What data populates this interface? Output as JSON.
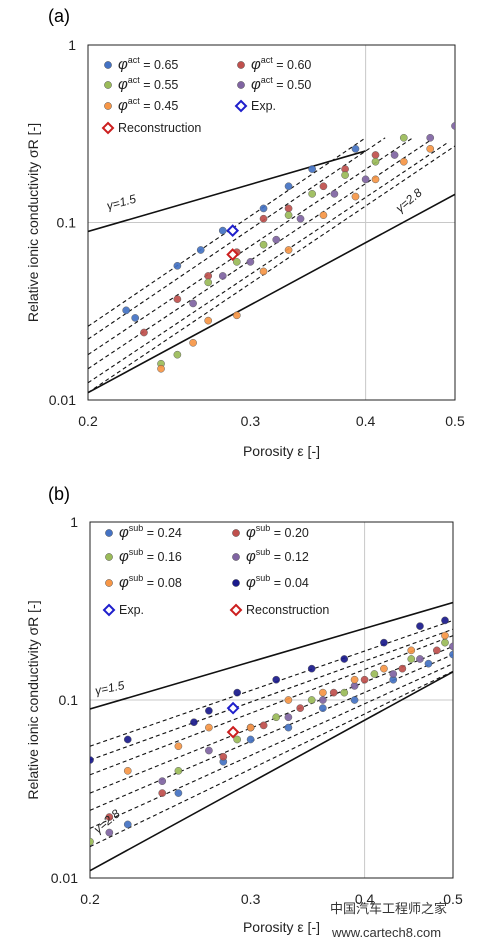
{
  "watermark": {
    "line1": "中国汽车工程师之家",
    "line2": "www.cartech8.com"
  },
  "chart_data": [
    {
      "panel": "(a)",
      "type": "scatter",
      "scale": "log-log",
      "xlabel": "Porosity ε [-]",
      "ylabel": "Relative ionic conductivity σR [-]",
      "xlim": [
        0.2,
        0.5
      ],
      "ylim": [
        0.01,
        1
      ],
      "xticks": [
        "0.2",
        "0.3",
        "0.4",
        "0.5"
      ],
      "yticks": [
        "0.01",
        "0.1",
        "1"
      ],
      "grid": {
        "x": 0.4,
        "y": 0.1
      },
      "bounds": [
        {
          "label": "γ=1.5",
          "exponent": 1.5,
          "points": [
            [
              0.2,
              0.089
            ],
            [
              0.4,
              0.253
            ]
          ]
        },
        {
          "label": "γ=2.8",
          "exponent": 2.8,
          "points": [
            [
              0.2,
              0.011
            ],
            [
              0.5,
              0.144
            ]
          ]
        }
      ],
      "fit_lines": [
        {
          "from": [
            0.2,
            0.026
          ],
          "to": [
            0.4,
            0.3
          ]
        },
        {
          "from": [
            0.2,
            0.022
          ],
          "to": [
            0.42,
            0.3
          ]
        },
        {
          "from": [
            0.2,
            0.018
          ],
          "to": [
            0.45,
            0.3
          ]
        },
        {
          "from": [
            0.2,
            0.015
          ],
          "to": [
            0.47,
            0.29
          ]
        },
        {
          "from": [
            0.2,
            0.0125
          ],
          "to": [
            0.49,
            0.28
          ]
        },
        {
          "from": [
            0.2,
            0.011
          ],
          "to": [
            0.5,
            0.27
          ]
        }
      ],
      "legend": [
        {
          "label": "φact = 0.65",
          "color": "#4472c4",
          "marker": "circle"
        },
        {
          "label": "φact = 0.60",
          "color": "#c0504d",
          "marker": "circle"
        },
        {
          "label": "φact = 0.55",
          "color": "#9bbb59",
          "marker": "circle"
        },
        {
          "label": "φact = 0.50",
          "color": "#8064a2",
          "marker": "circle"
        },
        {
          "label": "φact = 0.45",
          "color": "#f79646",
          "marker": "circle"
        },
        {
          "label": "Exp.",
          "color": "#1f1fcc",
          "marker": "diamond"
        },
        {
          "label": "Reconstruction",
          "color": "#cc1f1f",
          "marker": "diamond"
        }
      ],
      "series": [
        {
          "name": "φact = 0.65",
          "color": "#4472c4",
          "points": [
            [
              0.22,
              0.032
            ],
            [
              0.225,
              0.029
            ],
            [
              0.25,
              0.057
            ],
            [
              0.265,
              0.07
            ],
            [
              0.28,
              0.09
            ],
            [
              0.31,
              0.12
            ],
            [
              0.33,
              0.16
            ],
            [
              0.35,
              0.2
            ],
            [
              0.39,
              0.26
            ]
          ]
        },
        {
          "name": "φact = 0.60",
          "color": "#c0504d",
          "points": [
            [
              0.23,
              0.024
            ],
            [
              0.25,
              0.037
            ],
            [
              0.27,
              0.05
            ],
            [
              0.29,
              0.068
            ],
            [
              0.31,
              0.105
            ],
            [
              0.33,
              0.12
            ],
            [
              0.36,
              0.16
            ],
            [
              0.38,
              0.2
            ],
            [
              0.41,
              0.24
            ]
          ]
        },
        {
          "name": "φact = 0.55",
          "color": "#9bbb59",
          "points": [
            [
              0.24,
              0.016
            ],
            [
              0.25,
              0.018
            ],
            [
              0.27,
              0.046
            ],
            [
              0.29,
              0.06
            ],
            [
              0.31,
              0.075
            ],
            [
              0.33,
              0.11
            ],
            [
              0.35,
              0.145
            ],
            [
              0.38,
              0.185
            ],
            [
              0.41,
              0.22
            ],
            [
              0.44,
              0.3
            ]
          ]
        },
        {
          "name": "φact = 0.50",
          "color": "#8064a2",
          "points": [
            [
              0.26,
              0.035
            ],
            [
              0.28,
              0.05
            ],
            [
              0.3,
              0.06
            ],
            [
              0.32,
              0.08
            ],
            [
              0.34,
              0.105
            ],
            [
              0.37,
              0.145
            ],
            [
              0.4,
              0.175
            ],
            [
              0.43,
              0.24
            ],
            [
              0.47,
              0.3
            ],
            [
              0.5,
              0.35
            ]
          ]
        },
        {
          "name": "φact = 0.45",
          "color": "#f79646",
          "points": [
            [
              0.24,
              0.015
            ],
            [
              0.26,
              0.021
            ],
            [
              0.27,
              0.028
            ],
            [
              0.29,
              0.03
            ],
            [
              0.31,
              0.053
            ],
            [
              0.33,
              0.07
            ],
            [
              0.36,
              0.11
            ],
            [
              0.39,
              0.14
            ],
            [
              0.41,
              0.175
            ],
            [
              0.44,
              0.22
            ],
            [
              0.47,
              0.26
            ]
          ]
        }
      ],
      "markers": [
        {
          "name": "Exp.",
          "color": "#1f1fcc",
          "x": 0.287,
          "y": 0.09
        },
        {
          "name": "Reconstruction",
          "color": "#cc1f1f",
          "x": 0.287,
          "y": 0.066
        }
      ]
    },
    {
      "panel": "(b)",
      "type": "scatter",
      "scale": "log-log",
      "xlabel": "Porosity ε [-]",
      "ylabel": "Relative ionic conductivity σR [-]",
      "xlim": [
        0.2,
        0.5
      ],
      "ylim": [
        0.01,
        1
      ],
      "xticks": [
        "0.2",
        "0.3",
        "0.4",
        "0.5"
      ],
      "yticks": [
        "0.01",
        "0.1",
        "1"
      ],
      "grid": {
        "x": 0.4,
        "y": 0.1
      },
      "bounds": [
        {
          "label": "γ=1.5",
          "exponent": 1.5,
          "points": [
            [
              0.2,
              0.089
            ],
            [
              0.5,
              0.353
            ]
          ]
        },
        {
          "label": "γ=2.8",
          "exponent": 2.8,
          "points": [
            [
              0.2,
              0.011
            ],
            [
              0.5,
              0.144
            ]
          ]
        }
      ],
      "fit_lines": [
        {
          "from": [
            0.2,
            0.055
          ],
          "to": [
            0.5,
            0.28
          ]
        },
        {
          "from": [
            0.2,
            0.046
          ],
          "to": [
            0.5,
            0.25
          ]
        },
        {
          "from": [
            0.2,
            0.038
          ],
          "to": [
            0.5,
            0.23
          ]
        },
        {
          "from": [
            0.2,
            0.03
          ],
          "to": [
            0.5,
            0.2
          ]
        },
        {
          "from": [
            0.2,
            0.024
          ],
          "to": [
            0.5,
            0.18
          ]
        },
        {
          "from": [
            0.2,
            0.019
          ],
          "to": [
            0.5,
            0.16
          ]
        },
        {
          "from": [
            0.2,
            0.015
          ],
          "to": [
            0.5,
            0.145
          ]
        }
      ],
      "legend": [
        {
          "label": "φsub = 0.24",
          "color": "#4472c4",
          "marker": "circle"
        },
        {
          "label": "φsub = 0.20",
          "color": "#c0504d",
          "marker": "circle"
        },
        {
          "label": "φsub = 0.16",
          "color": "#9bbb59",
          "marker": "circle"
        },
        {
          "label": "φsub = 0.12",
          "color": "#8064a2",
          "marker": "circle"
        },
        {
          "label": "φsub = 0.08",
          "color": "#f79646",
          "marker": "circle"
        },
        {
          "label": "φsub = 0.04",
          "color": "#1a1a8c",
          "marker": "circle"
        },
        {
          "label": "Exp.",
          "color": "#1f1fcc",
          "marker": "diamond"
        },
        {
          "label": "Reconstruction",
          "color": "#cc1f1f",
          "marker": "diamond"
        }
      ],
      "series": [
        {
          "name": "φsub = 0.04",
          "color": "#1a1a8c",
          "points": [
            [
              0.2,
              0.046
            ],
            [
              0.22,
              0.06
            ],
            [
              0.26,
              0.075
            ],
            [
              0.27,
              0.087
            ],
            [
              0.29,
              0.11
            ],
            [
              0.32,
              0.13
            ],
            [
              0.35,
              0.15
            ],
            [
              0.38,
              0.17
            ],
            [
              0.42,
              0.21
            ],
            [
              0.46,
              0.26
            ],
            [
              0.49,
              0.28
            ]
          ]
        },
        {
          "name": "φsub = 0.24",
          "color": "#4472c4",
          "points": [
            [
              0.22,
              0.02
            ],
            [
              0.25,
              0.03
            ],
            [
              0.28,
              0.045
            ],
            [
              0.3,
              0.06
            ],
            [
              0.33,
              0.07
            ],
            [
              0.36,
              0.09
            ],
            [
              0.39,
              0.1
            ],
            [
              0.43,
              0.13
            ],
            [
              0.47,
              0.16
            ],
            [
              0.5,
              0.18
            ]
          ]
        },
        {
          "name": "φsub = 0.20",
          "color": "#c0504d",
          "points": [
            [
              0.21,
              0.022
            ],
            [
              0.24,
              0.03
            ],
            [
              0.28,
              0.048
            ],
            [
              0.31,
              0.072
            ],
            [
              0.34,
              0.09
            ],
            [
              0.37,
              0.11
            ],
            [
              0.4,
              0.13
            ],
            [
              0.44,
              0.15
            ],
            [
              0.48,
              0.19
            ]
          ]
        },
        {
          "name": "φsub = 0.16",
          "color": "#9bbb59",
          "points": [
            [
              0.2,
              0.016
            ],
            [
              0.25,
              0.04
            ],
            [
              0.29,
              0.06
            ],
            [
              0.32,
              0.08
            ],
            [
              0.35,
              0.1
            ],
            [
              0.38,
              0.11
            ],
            [
              0.41,
              0.14
            ],
            [
              0.45,
              0.17
            ],
            [
              0.49,
              0.21
            ]
          ]
        },
        {
          "name": "φsub = 0.12",
          "color": "#8064a2",
          "points": [
            [
              0.21,
              0.018
            ],
            [
              0.24,
              0.035
            ],
            [
              0.27,
              0.052
            ],
            [
              0.3,
              0.07
            ],
            [
              0.33,
              0.08
            ],
            [
              0.36,
              0.1
            ],
            [
              0.39,
              0.12
            ],
            [
              0.43,
              0.14
            ],
            [
              0.46,
              0.17
            ],
            [
              0.5,
              0.2
            ]
          ]
        },
        {
          "name": "φsub = 0.08",
          "color": "#f79646",
          "points": [
            [
              0.22,
              0.04
            ],
            [
              0.25,
              0.055
            ],
            [
              0.27,
              0.07
            ],
            [
              0.3,
              0.07
            ],
            [
              0.33,
              0.1
            ],
            [
              0.36,
              0.11
            ],
            [
              0.39,
              0.13
            ],
            [
              0.42,
              0.15
            ],
            [
              0.45,
              0.19
            ],
            [
              0.49,
              0.23
            ]
          ]
        }
      ],
      "markers": [
        {
          "name": "Exp.",
          "color": "#1f1fcc",
          "x": 0.287,
          "y": 0.09
        },
        {
          "name": "Reconstruction",
          "color": "#cc1f1f",
          "x": 0.287,
          "y": 0.066
        }
      ]
    }
  ]
}
